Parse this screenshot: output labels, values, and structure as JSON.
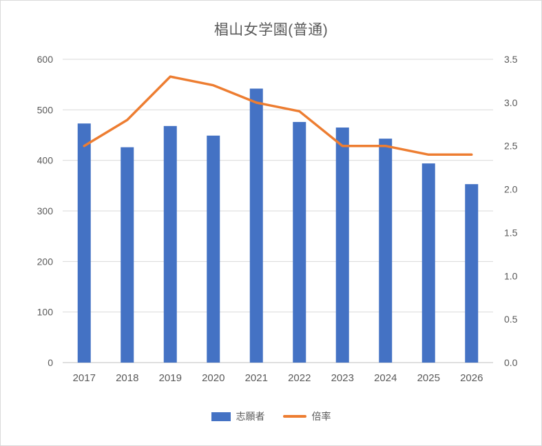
{
  "title": "椙山女学園(普通)",
  "chart_data": {
    "type": "combo-bar-line",
    "title": "椙山女学園(普通)",
    "categories": [
      "2017",
      "2018",
      "2019",
      "2020",
      "2021",
      "2022",
      "2023",
      "2024",
      "2025",
      "2026"
    ],
    "series": [
      {
        "name": "志願者",
        "type": "bar",
        "axis": "left",
        "color": "#4472C4",
        "values": [
          473,
          426,
          468,
          449,
          542,
          476,
          465,
          443,
          394,
          353
        ]
      },
      {
        "name": "倍率",
        "type": "line",
        "axis": "right",
        "color": "#ED7D31",
        "values": [
          2.5,
          2.8,
          3.3,
          3.2,
          3.0,
          2.9,
          2.5,
          2.5,
          2.4,
          2.4
        ]
      }
    ],
    "left_axis": {
      "min": 0,
      "max": 600,
      "step": 100,
      "tick_labels": [
        "0",
        "100",
        "200",
        "300",
        "400",
        "500",
        "600"
      ]
    },
    "right_axis": {
      "min": 0,
      "max": 3.5,
      "step": 0.5,
      "tick_labels": [
        "0.0",
        "0.5",
        "1.0",
        "1.5",
        "2.0",
        "2.5",
        "3.0",
        "3.5"
      ]
    },
    "grid": true,
    "legend_position": "bottom"
  },
  "legend": {
    "items": [
      {
        "label": "志願者",
        "color": "#4472C4",
        "marker": "rect"
      },
      {
        "label": "倍率",
        "color": "#ED7D31",
        "marker": "line"
      }
    ]
  },
  "colors": {
    "bar": "#4472C4",
    "line": "#ED7D31",
    "grid": "#D9D9D9",
    "axis_line": "#BFBFBF",
    "axis_text": "#595959",
    "border": "#D9D9D9"
  }
}
